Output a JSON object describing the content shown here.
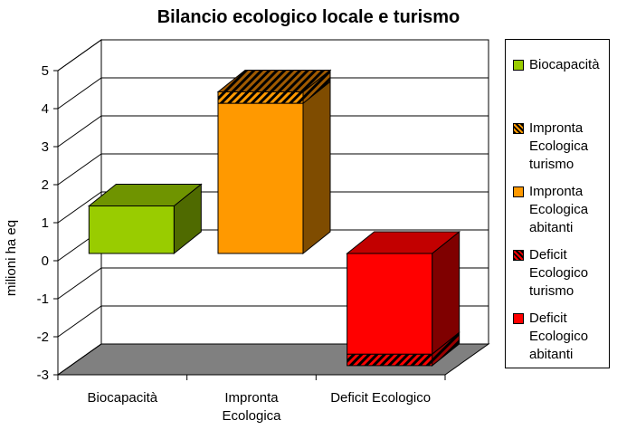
{
  "chart_data": {
    "type": "bar",
    "title": "Bilancio ecologico locale e turismo",
    "ylabel": "milioni ha eq",
    "xlabel": "",
    "ylim": [
      -3,
      5
    ],
    "yticks": [
      "5",
      "4",
      "3",
      "2",
      "1",
      "0",
      "-1",
      "-2",
      "-3"
    ],
    "categories": [
      "Biocapacità",
      "Impronta Ecologica",
      "Deficit Ecologico"
    ],
    "stacks": [
      {
        "category": "Biocapacità",
        "segments": [
          {
            "series": "Biocapacità",
            "from": 0,
            "to": 1.25
          }
        ]
      },
      {
        "category": "Impronta Ecologica",
        "segments": [
          {
            "series": "Impronta Ecologica abitanti",
            "from": 0,
            "to": 3.95
          },
          {
            "series": "Impronta Ecologica turismo",
            "from": 3.95,
            "to": 4.25
          }
        ]
      },
      {
        "category": "Deficit Ecologico",
        "segments": [
          {
            "series": "Deficit Ecologico abitanti",
            "from": 0,
            "to": -2.65
          },
          {
            "series": "Deficit Ecologico turismo",
            "from": -2.65,
            "to": -2.95
          }
        ]
      }
    ],
    "legend": [
      {
        "name": "Biocapacità",
        "color": "#99cc00",
        "pattern": "solid"
      },
      {
        "name": "Impronta Ecologica turismo",
        "color": "#ff9900",
        "pattern": "hatch"
      },
      {
        "name": "Impronta Ecologica abitanti",
        "color": "#ff9900",
        "pattern": "solid"
      },
      {
        "name": "Deficit Ecologico turismo",
        "color": "#ff0000",
        "pattern": "hatch"
      },
      {
        "name": "Deficit Ecologico abitanti",
        "color": "#ff0000",
        "pattern": "solid"
      }
    ],
    "grid": true,
    "legend_position": "right"
  },
  "colors": {
    "biocapacita": "#99cc00",
    "impronta": "#ff9900",
    "deficit": "#ff0000",
    "wall": "#ffffff",
    "floor": "#808080"
  }
}
